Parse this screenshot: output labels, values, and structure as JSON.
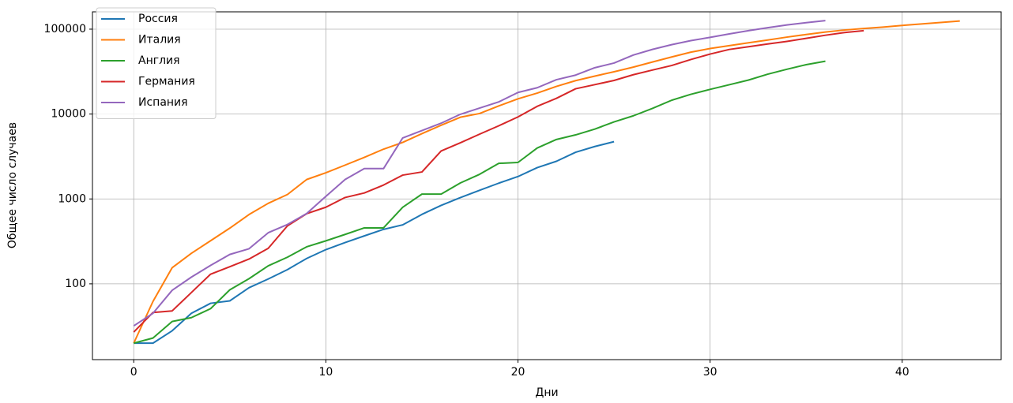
{
  "chart_data": {
    "type": "line",
    "x_label": "Дни",
    "y_label": "Общее число случаев",
    "x": [
      0,
      1,
      2,
      3,
      4,
      5,
      6,
      7,
      8,
      9,
      10,
      11,
      12,
      13,
      14,
      15,
      16,
      17,
      18,
      19,
      20,
      21,
      22,
      23,
      24,
      25,
      26,
      27,
      28,
      29,
      30,
      31,
      32,
      33,
      34,
      35,
      36,
      37,
      38,
      39,
      40,
      41,
      42,
      43
    ],
    "xlim": [
      -2.15,
      45.15
    ],
    "xticks": [
      0,
      10,
      20,
      30,
      40
    ],
    "ylim": [
      12.8,
      160000
    ],
    "yticks": [
      100,
      1000,
      10000,
      100000
    ],
    "log_y": true,
    "grid": true,
    "legend_position": "upper-left",
    "series": [
      {
        "name": "Россия",
        "color": "#1f77b4",
        "values": [
          20,
          20,
          28,
          45,
          59,
          63,
          90,
          114,
          147,
          199,
          253,
          306,
          367,
          438,
          495,
          658,
          840,
          1036,
          1264,
          1534,
          1836,
          2337,
          2777,
          3548,
          4149,
          4731,
          null,
          null,
          null,
          null,
          null,
          null,
          null,
          null,
          null,
          null,
          null,
          null,
          null,
          null,
          null,
          null,
          null,
          null
        ]
      },
      {
        "name": "Италия",
        "color": "#ff7f0e",
        "values": [
          20,
          62,
          155,
          229,
          322,
          453,
          655,
          888,
          1128,
          1694,
          2036,
          2502,
          3089,
          3858,
          4636,
          5883,
          7375,
          9172,
          10149,
          12462,
          15113,
          17660,
          21157,
          24747,
          27980,
          31506,
          35713,
          41035,
          47021,
          53578,
          59138,
          63927,
          69176,
          74386,
          80589,
          86498,
          92472,
          97689,
          101739,
          105792,
          110574,
          115242,
          119827,
          124632
        ]
      },
      {
        "name": "Англия",
        "color": "#2ca02c",
        "values": [
          20,
          23,
          36,
          40,
          51,
          85,
          115,
          163,
          206,
          273,
          321,
          382,
          456,
          456,
          798,
          1140,
          1140,
          1543,
          1950,
          2626,
          2689,
          3983,
          5018,
          5683,
          6650,
          8077,
          9529,
          11658,
          14543,
          17089,
          19522,
          22141,
          25150,
          29474,
          33718,
          38168,
          41903,
          null,
          null,
          null,
          null,
          null,
          null,
          null
        ]
      },
      {
        "name": "Германия",
        "color": "#d62728",
        "values": [
          27,
          46,
          48,
          79,
          130,
          159,
          196,
          262,
          482,
          670,
          799,
          1040,
          1176,
          1457,
          1908,
          2078,
          3675,
          4585,
          5795,
          7272,
          9257,
          12327,
          15320,
          19848,
          22213,
          24873,
          29056,
          32986,
          37323,
          43938,
          50871,
          57695,
          62095,
          66885,
          71808,
          77872,
          84794,
          91159,
          96092,
          null,
          null,
          null,
          null,
          null
        ]
      },
      {
        "name": "Испания",
        "color": "#9467bd",
        "values": [
          32,
          45,
          84,
          120,
          165,
          222,
          259,
          400,
          500,
          673,
          1073,
          1695,
          2277,
          2277,
          5232,
          6391,
          7798,
          9942,
          11748,
          13910,
          17963,
          20410,
          25374,
          28768,
          35136,
          39885,
          49515,
          57786,
          65719,
          73235,
          80110,
          87956,
          95923,
          104118,
          112065,
          119199,
          126168,
          null,
          null,
          null,
          null,
          null,
          null,
          null
        ]
      }
    ]
  }
}
